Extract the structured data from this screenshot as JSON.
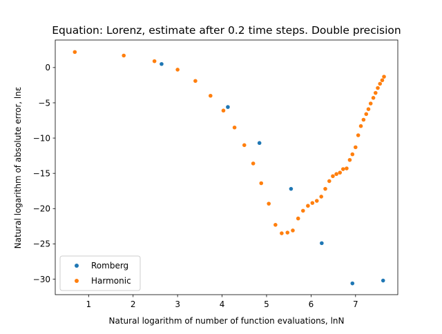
{
  "chart_data": {
    "type": "scatter",
    "title": "Equation: Lorenz, estimate after 0.2 time steps. Double precision",
    "xlabel": "Natural logarithm of number of function evaluations, lnN",
    "ylabel": "Natural logarithm of absolute error, lnε",
    "xlim": [
      0.25,
      7.95
    ],
    "ylim": [
      -32.2,
      3.9
    ],
    "xticks": [
      1,
      2,
      3,
      4,
      5,
      6,
      7
    ],
    "yticks": [
      0,
      -5,
      -10,
      -15,
      -20,
      -25,
      -30
    ],
    "grid": false,
    "legend_position": "lower-left",
    "series": [
      {
        "name": "Romberg",
        "color": "#1f77b4",
        "points": [
          [
            2.64,
            0.5
          ],
          [
            4.13,
            -5.6
          ],
          [
            4.84,
            -10.7
          ],
          [
            5.55,
            -17.2
          ],
          [
            6.24,
            -24.9
          ],
          [
            6.93,
            -30.6
          ],
          [
            7.62,
            -30.2
          ]
        ]
      },
      {
        "name": "Harmonic",
        "color": "#ff7f0e",
        "points": [
          [
            0.69,
            2.2
          ],
          [
            1.79,
            1.7
          ],
          [
            2.48,
            0.9
          ],
          [
            3.0,
            -0.3
          ],
          [
            3.4,
            -1.9
          ],
          [
            3.74,
            -4.0
          ],
          [
            4.03,
            -6.1
          ],
          [
            4.28,
            -8.5
          ],
          [
            4.5,
            -11.0
          ],
          [
            4.7,
            -13.6
          ],
          [
            4.88,
            -16.4
          ],
          [
            5.05,
            -19.3
          ],
          [
            5.2,
            -22.3
          ],
          [
            5.34,
            -23.5
          ],
          [
            5.47,
            -23.4
          ],
          [
            5.59,
            -23.1
          ],
          [
            5.71,
            -21.4
          ],
          [
            5.82,
            -20.3
          ],
          [
            5.93,
            -19.6
          ],
          [
            6.03,
            -19.2
          ],
          [
            6.13,
            -18.9
          ],
          [
            6.23,
            -18.3
          ],
          [
            6.32,
            -17.2
          ],
          [
            6.41,
            -16.1
          ],
          [
            6.49,
            -15.4
          ],
          [
            6.57,
            -15.1
          ],
          [
            6.65,
            -14.9
          ],
          [
            6.72,
            -14.4
          ],
          [
            6.8,
            -14.3
          ],
          [
            6.87,
            -13.1
          ],
          [
            6.93,
            -12.3
          ],
          [
            7.0,
            -11.3
          ],
          [
            7.06,
            -9.6
          ],
          [
            7.12,
            -8.3
          ],
          [
            7.18,
            -7.4
          ],
          [
            7.24,
            -6.6
          ],
          [
            7.29,
            -5.9
          ],
          [
            7.34,
            -5.1
          ],
          [
            7.4,
            -4.3
          ],
          [
            7.45,
            -3.6
          ],
          [
            7.5,
            -2.9
          ],
          [
            7.55,
            -2.3
          ],
          [
            7.6,
            -1.8
          ],
          [
            7.64,
            -1.3
          ]
        ]
      }
    ]
  }
}
